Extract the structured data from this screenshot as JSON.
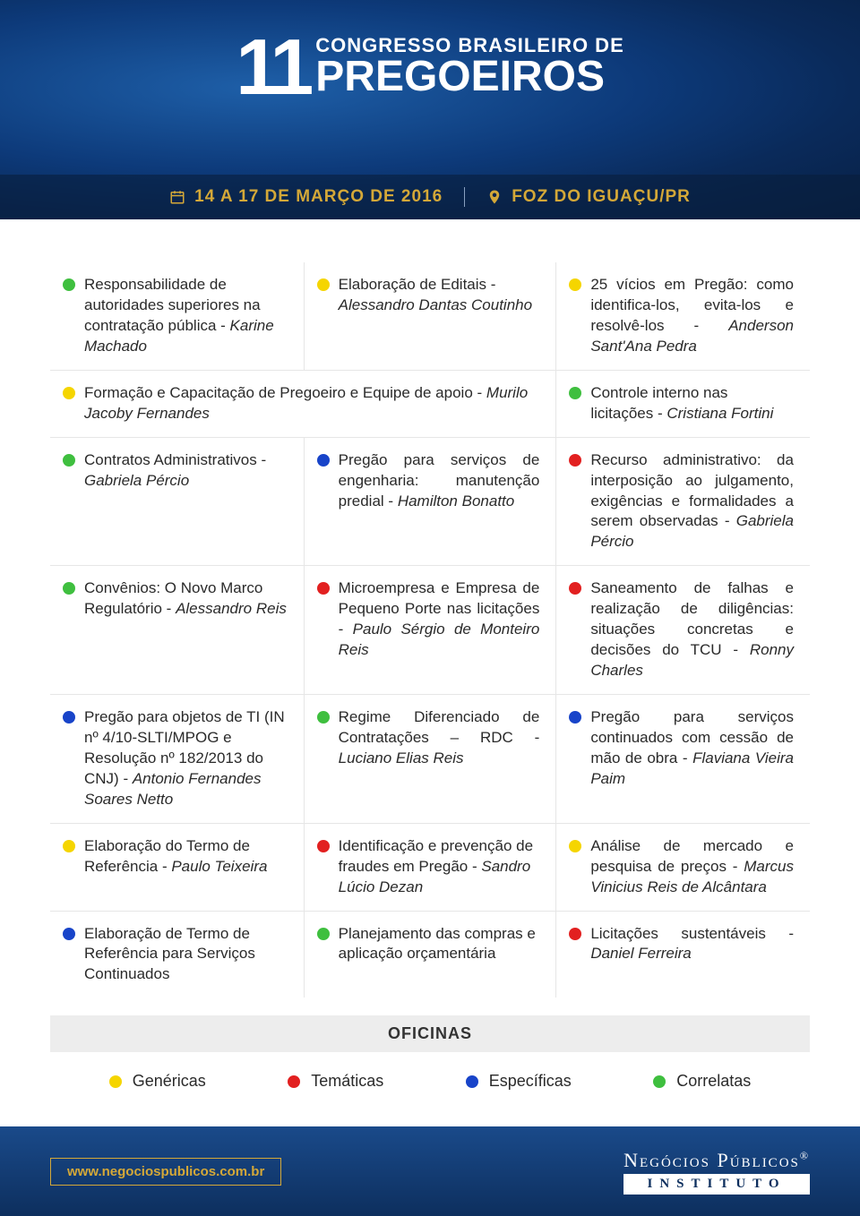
{
  "header": {
    "number": "11",
    "title_top": "CONGRESSO BRASILEIRO DE",
    "title_bottom": "PREGOEIROS",
    "date": "14 A 17 DE MARÇO DE 2016",
    "location": "FOZ DO IGUAÇU/PR",
    "accent_color": "#d4a838",
    "bg_gradient": [
      "#1e5fa8",
      "#0d3a7a",
      "#071f42"
    ]
  },
  "colors": {
    "green": "#3fbf3f",
    "yellow": "#f5d500",
    "blue": "#1844c9",
    "red": "#e22020",
    "border": "#e6e6e6",
    "text": "#2a2a2a",
    "oficinas_bg": "#ededed"
  },
  "sessions": [
    [
      {
        "color": "green",
        "title": "Responsabilidade de autoridades superiores na contratação pública",
        "author": "Karine Machado",
        "align": "left"
      },
      {
        "color": "yellow",
        "title": "Elaboração de Editais",
        "author": "Alessandro Dantas Coutinho",
        "align": "left"
      },
      {
        "color": "yellow",
        "title": "25 vícios em Pregão: como identifica-los, evita-los e resolvê-los",
        "author": "Anderson Sant'Ana Pedra",
        "align": "justify"
      }
    ],
    [
      {
        "color": "yellow",
        "title": "Formação e Capacitação de Pregoeiro e Equipe de apoio",
        "author": "Murilo Jacoby Fernandes",
        "span": 2,
        "align": "left"
      },
      {
        "color": "green",
        "title": "Controle interno nas licitações",
        "author": "Cristiana Fortini",
        "align": "left"
      }
    ],
    [
      {
        "color": "green",
        "title": "Contratos Administrativos",
        "author": "Gabriela Pércio",
        "align": "left"
      },
      {
        "color": "blue",
        "title": "Pregão para serviços de engenharia: manutenção predial",
        "author": "Hamilton Bonatto",
        "align": "justify"
      },
      {
        "color": "red",
        "title": "Recurso administrativo: da interposição ao julgamento, exigências e formalidades a serem observadas",
        "author": "Gabriela Pércio",
        "align": "justify"
      }
    ],
    [
      {
        "color": "green",
        "title": "Convênios: O Novo Marco Regulatório",
        "author": "Alessandro Reis",
        "align": "left"
      },
      {
        "color": "red",
        "title": "Microempresa e Empresa de Pequeno Porte nas licitações",
        "author": "Paulo Sérgio de Monteiro Reis",
        "align": "justify"
      },
      {
        "color": "red",
        "title": "Saneamento de falhas e realização de diligências: situações concretas e decisões do TCU",
        "author": "Ronny Charles",
        "align": "justify"
      }
    ],
    [
      {
        "color": "blue",
        "title": "Pregão para objetos de TI (IN nº 4/10-SLTI/MPOG e Resolução nº 182/2013 do CNJ)",
        "author": "Antonio Fernandes Soares Netto",
        "align": "left"
      },
      {
        "color": "green",
        "title": "Regime Diferenciado de Contratações – RDC",
        "author": "Luciano Elias Reis",
        "align": "justify"
      },
      {
        "color": "blue",
        "title": "Pregão para serviços continuados com cessão de mão de obra",
        "author": "Flaviana Vieira Paim",
        "align": "justify"
      }
    ],
    [
      {
        "color": "yellow",
        "title": "Elaboração do Termo de Referência",
        "author": "Paulo Teixeira",
        "align": "left"
      },
      {
        "color": "red",
        "title": "Identificação e prevenção de fraudes em Pregão",
        "author": "Sandro Lúcio Dezan",
        "align": "left"
      },
      {
        "color": "yellow",
        "title": "Análise de mercado e pesquisa de preços",
        "author": "Marcus Vinicius Reis de Alcântara",
        "align": "justify"
      }
    ],
    [
      {
        "color": "blue",
        "title": "Elaboração de Termo de Referência para Serviços Continuados",
        "author": "",
        "align": "left"
      },
      {
        "color": "green",
        "title": "Planejamento das compras e aplicação orçamentária",
        "author": "",
        "align": "left"
      },
      {
        "color": "red",
        "title": "Licitações sustentáveis",
        "author": "Daniel Ferreira",
        "align": "justify"
      }
    ]
  ],
  "oficinas_label": "OFICINAS",
  "legend": [
    {
      "color": "yellow",
      "label": "Genéricas"
    },
    {
      "color": "red",
      "label": "Temáticas"
    },
    {
      "color": "blue",
      "label": "Específicas"
    },
    {
      "color": "green",
      "label": "Correlatas"
    }
  ],
  "footer": {
    "url": "www.negociospublicos.com.br",
    "logo_top": "Negócios Públicos",
    "logo_reg": "®",
    "logo_bottom": "INSTITUTO",
    "bg_gradient": [
      "#1a4a8a",
      "#0d2f5e"
    ]
  }
}
